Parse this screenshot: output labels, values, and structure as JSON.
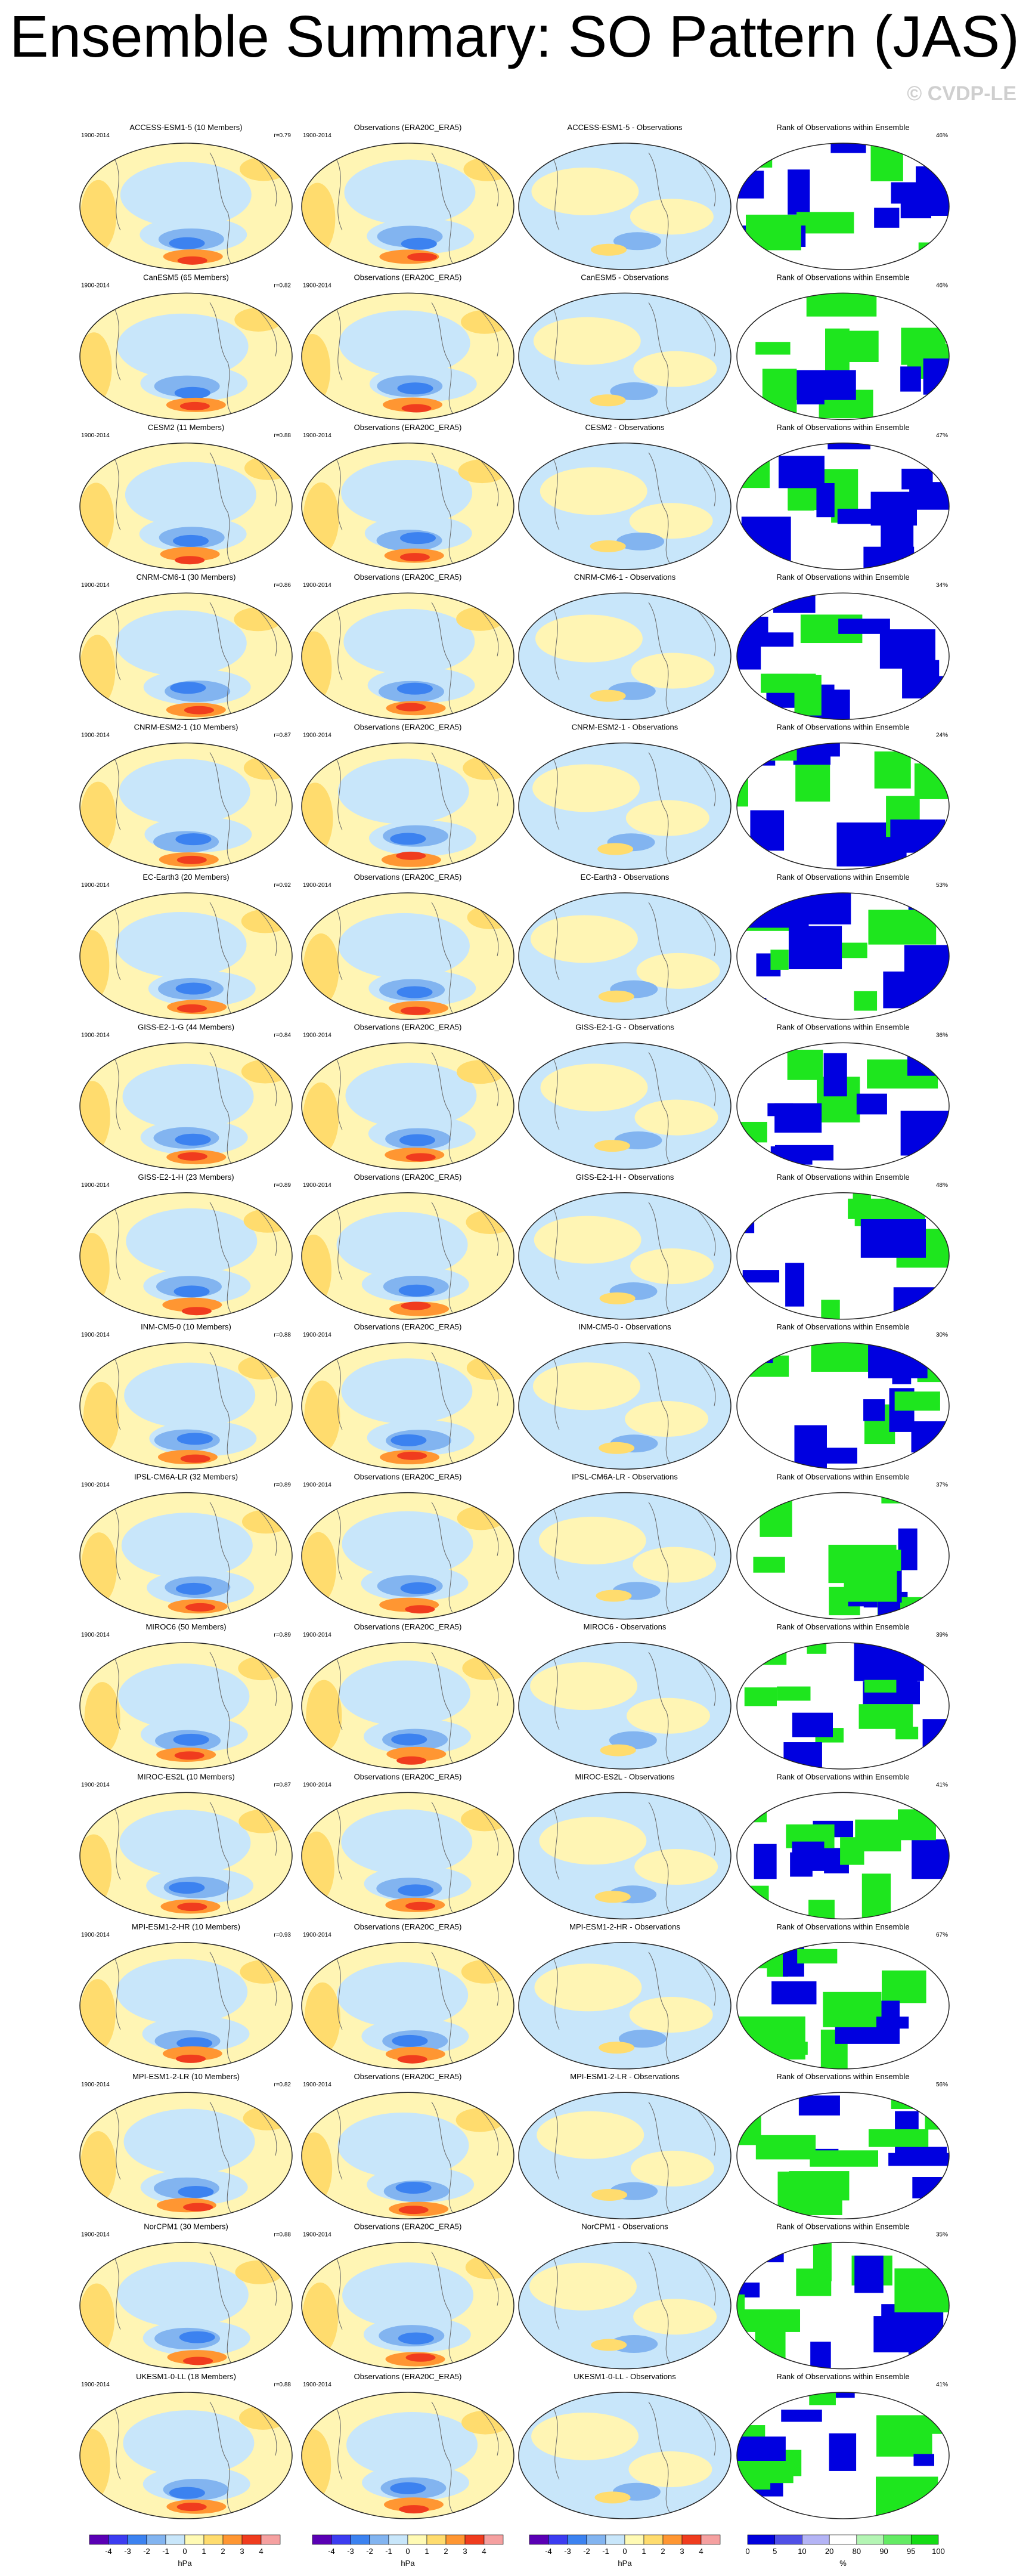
{
  "header": {
    "title": "Ensemble Summary: SO Pattern (JAS)",
    "watermark": "© CVDP-LE"
  },
  "rows": [
    {
      "model_title": "ACCESS-ESM1-5 (10 Members)",
      "model_years": "1900-2014",
      "r": "r=0.79",
      "obs_title": "Observations (ERA20C_ERA5)",
      "obs_years": "1900-2014",
      "diff_title": "ACCESS-ESM1-5 - Observations",
      "rank_title": "Rank of Observations within Ensemble",
      "rank_pct": "46%"
    },
    {
      "model_title": "CanESM5 (65 Members)",
      "model_years": "1900-2014",
      "r": "r=0.82",
      "obs_title": "Observations (ERA20C_ERA5)",
      "obs_years": "1900-2014",
      "diff_title": "CanESM5 - Observations",
      "rank_title": "Rank of Observations within Ensemble",
      "rank_pct": "46%"
    },
    {
      "model_title": "CESM2 (11 Members)",
      "model_years": "1900-2014",
      "r": "r=0.88",
      "obs_title": "Observations (ERA20C_ERA5)",
      "obs_years": "1900-2014",
      "diff_title": "CESM2 - Observations",
      "rank_title": "Rank of Observations within Ensemble",
      "rank_pct": "47%"
    },
    {
      "model_title": "CNRM-CM6-1 (30 Members)",
      "model_years": "1900-2014",
      "r": "r=0.86",
      "obs_title": "Observations (ERA20C_ERA5)",
      "obs_years": "1900-2014",
      "diff_title": "CNRM-CM6-1 - Observations",
      "rank_title": "Rank of Observations within Ensemble",
      "rank_pct": "34%"
    },
    {
      "model_title": "CNRM-ESM2-1 (10 Members)",
      "model_years": "1900-2014",
      "r": "r=0.87",
      "obs_title": "Observations (ERA20C_ERA5)",
      "obs_years": "1900-2014",
      "diff_title": "CNRM-ESM2-1 - Observations",
      "rank_title": "Rank of Observations within Ensemble",
      "rank_pct": "24%"
    },
    {
      "model_title": "EC-Earth3 (20 Members)",
      "model_years": "1900-2014",
      "r": "r=0.92",
      "obs_title": "Observations (ERA20C_ERA5)",
      "obs_years": "1900-2014",
      "diff_title": "EC-Earth3 - Observations",
      "rank_title": "Rank of Observations within Ensemble",
      "rank_pct": "53%"
    },
    {
      "model_title": "GISS-E2-1-G (44 Members)",
      "model_years": "1900-2014",
      "r": "r=0.84",
      "obs_title": "Observations (ERA20C_ERA5)",
      "obs_years": "1900-2014",
      "diff_title": "GISS-E2-1-G - Observations",
      "rank_title": "Rank of Observations within Ensemble",
      "rank_pct": "36%"
    },
    {
      "model_title": "GISS-E2-1-H (23 Members)",
      "model_years": "1900-2014",
      "r": "r=0.89",
      "obs_title": "Observations (ERA20C_ERA5)",
      "obs_years": "1900-2014",
      "diff_title": "GISS-E2-1-H - Observations",
      "rank_title": "Rank of Observations within Ensemble",
      "rank_pct": "48%"
    },
    {
      "model_title": "INM-CM5-0 (10 Members)",
      "model_years": "1900-2014",
      "r": "r=0.88",
      "obs_title": "Observations (ERA20C_ERA5)",
      "obs_years": "1900-2014",
      "diff_title": "INM-CM5-0 - Observations",
      "rank_title": "Rank of Observations within Ensemble",
      "rank_pct": "30%"
    },
    {
      "model_title": "IPSL-CM6A-LR (32 Members)",
      "model_years": "1900-2014",
      "r": "r=0.89",
      "obs_title": "Observations (ERA20C_ERA5)",
      "obs_years": "1900-2014",
      "diff_title": "IPSL-CM6A-LR - Observations",
      "rank_title": "Rank of Observations within Ensemble",
      "rank_pct": "37%"
    },
    {
      "model_title": "MIROC6 (50 Members)",
      "model_years": "1900-2014",
      "r": "r=0.89",
      "obs_title": "Observations (ERA20C_ERA5)",
      "obs_years": "1900-2014",
      "diff_title": "MIROC6 - Observations",
      "rank_title": "Rank of Observations within Ensemble",
      "rank_pct": "39%"
    },
    {
      "model_title": "MIROC-ES2L (10 Members)",
      "model_years": "1900-2014",
      "r": "r=0.87",
      "obs_title": "Observations (ERA20C_ERA5)",
      "obs_years": "1900-2014",
      "diff_title": "MIROC-ES2L - Observations",
      "rank_title": "Rank of Observations within Ensemble",
      "rank_pct": "41%"
    },
    {
      "model_title": "MPI-ESM1-2-HR (10 Members)",
      "model_years": "1900-2014",
      "r": "r=0.93",
      "obs_title": "Observations (ERA20C_ERA5)",
      "obs_years": "1900-2014",
      "diff_title": "MPI-ESM1-2-HR - Observations",
      "rank_title": "Rank of Observations within Ensemble",
      "rank_pct": "67%"
    },
    {
      "model_title": "MPI-ESM1-2-LR (10 Members)",
      "model_years": "1900-2014",
      "r": "r=0.82",
      "obs_title": "Observations (ERA20C_ERA5)",
      "obs_years": "1900-2014",
      "diff_title": "MPI-ESM1-2-LR - Observations",
      "rank_title": "Rank of Observations within Ensemble",
      "rank_pct": "56%"
    },
    {
      "model_title": "NorCPM1 (30 Members)",
      "model_years": "1900-2014",
      "r": "r=0.88",
      "obs_title": "Observations (ERA20C_ERA5)",
      "obs_years": "1900-2014",
      "diff_title": "NorCPM1 - Observations",
      "rank_title": "Rank of Observations within Ensemble",
      "rank_pct": "35%"
    },
    {
      "model_title": "UKESM1-0-LL (18 Members)",
      "model_years": "1900-2014",
      "r": "r=0.88",
      "obs_title": "Observations (ERA20C_ERA5)",
      "obs_years": "1900-2014",
      "diff_title": "UKESM1-0-LL - Observations",
      "rank_title": "Rank of Observations within Ensemble",
      "rank_pct": "41%"
    }
  ],
  "colorbars": [
    {
      "labels": [
        -4,
        -3,
        -2,
        -1,
        0,
        1,
        2,
        3,
        4
      ],
      "unit": "hPa",
      "colors": [
        "#5a00b4",
        "#3c3cf0",
        "#3c82f0",
        "#82b4f0",
        "#c8e6fa",
        "#fffab4",
        "#ffdc6e",
        "#ff9632",
        "#f03c1e",
        "#f5a0a0"
      ]
    },
    {
      "labels": [
        -4,
        -3,
        -2,
        -1,
        0,
        1,
        2,
        3,
        4
      ],
      "unit": "hPa",
      "colors": [
        "#5a00b4",
        "#3c3cf0",
        "#3c82f0",
        "#82b4f0",
        "#c8e6fa",
        "#fffab4",
        "#ffdc6e",
        "#ff9632",
        "#f03c1e",
        "#f5a0a0"
      ]
    },
    {
      "labels": [
        -4,
        -3,
        -2,
        -1,
        0,
        1,
        2,
        3,
        4
      ],
      "unit": "hPa",
      "colors": [
        "#5a00b4",
        "#3c3cf0",
        "#3c82f0",
        "#82b4f0",
        "#c8e6fa",
        "#fffab4",
        "#ffdc6e",
        "#ff9632",
        "#f03c1e",
        "#f5a0a0"
      ]
    },
    {
      "labels": [
        0,
        5,
        10,
        20,
        80,
        90,
        95,
        100
      ],
      "unit": "%",
      "colors": [
        "#0000dc",
        "#5050e6",
        "#b4b4f5",
        "#ffffff",
        "#b4f5b4",
        "#64eb64",
        "#14dc14"
      ]
    }
  ]
}
